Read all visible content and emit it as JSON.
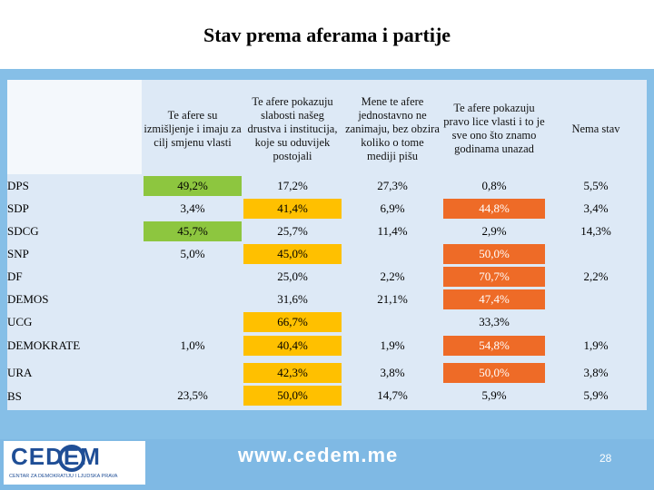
{
  "title": "Stav prema aferama i partije",
  "columns": [
    "Te afere su izmišljenje i imaju za cilj smjenu vlasti",
    "Te afere pokazuju slabosti našeg drustva i institucija, koje su oduvijek postojali",
    "Mene te afere jednostavno ne zanimaju, bez obzira koliko o tome mediji pišu",
    "Te afere pokazuju pravo lice vlasti i to je sve ono što znamo godinama unazad",
    "Nema stav"
  ],
  "rows": [
    {
      "label": "DPS",
      "cells": [
        "49,2%",
        "17,2%",
        "27,3%",
        "0,8%",
        "5,5%"
      ]
    },
    {
      "label": "SDP",
      "cells": [
        "3,4%",
        "41,4%",
        "6,9%",
        "44,8%",
        "3,4%"
      ]
    },
    {
      "label": "SDCG",
      "cells": [
        "45,7%",
        "25,7%",
        "11,4%",
        "2,9%",
        "14,3%"
      ]
    },
    {
      "label": "SNP",
      "cells": [
        "5,0%",
        "45,0%",
        "",
        "50,0%",
        ""
      ]
    },
    {
      "label": "DF",
      "cells": [
        "",
        "25,0%",
        "2,2%",
        "70,7%",
        "2,2%"
      ]
    },
    {
      "label": "DEMOS",
      "cells": [
        "",
        "31,6%",
        "21,1%",
        "47,4%",
        ""
      ]
    },
    {
      "label": "UCG",
      "cells": [
        "",
        "66,7%",
        "",
        "33,3%",
        ""
      ]
    },
    {
      "label": "DEMOKRATE",
      "cells": [
        "1,0%",
        "40,4%",
        "1,9%",
        "54,8%",
        "1,9%"
      ]
    },
    {
      "label": "URA",
      "cells": [
        "",
        "42,3%",
        "3,8%",
        "50,0%",
        "3,8%"
      ]
    },
    {
      "label": "BS",
      "cells": [
        "23,5%",
        "50,0%",
        "14,7%",
        "5,9%",
        "5,9%"
      ]
    }
  ],
  "highlights": {
    "green": "#8dc63f",
    "yellow": "#ffc000",
    "orange": "#ee6b27"
  },
  "footer": {
    "logo": "CEDEM",
    "logo_sub": "CENTAR ZA DEMOKRATIJU I LJUDSKA PRAVA",
    "website": "www.cedem.me",
    "page_number": "28"
  }
}
